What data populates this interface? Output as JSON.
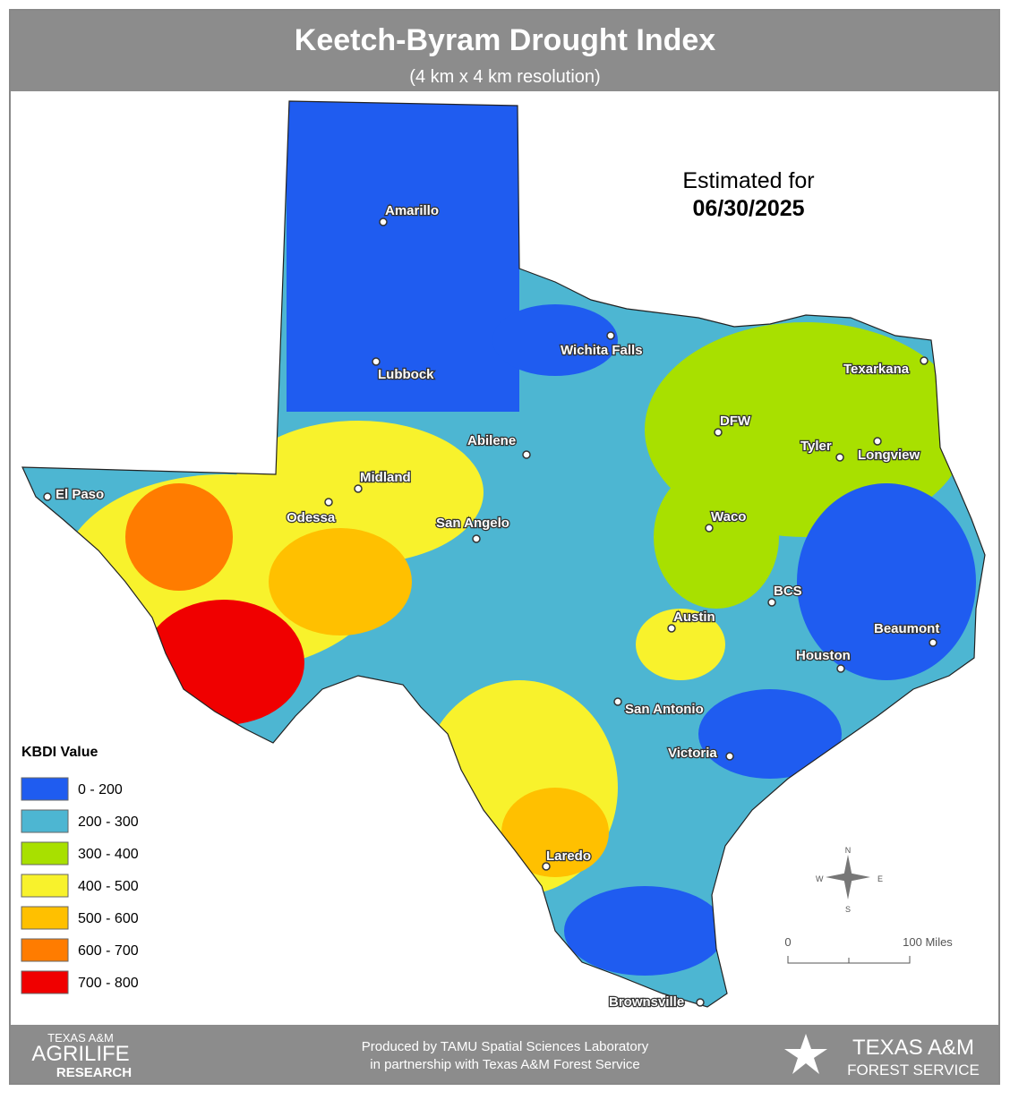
{
  "header": {
    "title": "Keetch-Byram Drought Index",
    "subtitle": "(4 km x 4 km resolution)"
  },
  "estimate": {
    "label": "Estimated for",
    "date": "06/30/2025"
  },
  "cities": [
    "Amarillo",
    "Wichita Falls",
    "Lubbock",
    "Texarkana",
    "DFW",
    "Abilene",
    "Tyler",
    "Longview",
    "Midland",
    "El Paso",
    "Odessa",
    "San Angelo",
    "Waco",
    "BCS",
    "Austin",
    "Beaumont",
    "Houston",
    "San Antonio",
    "Victoria",
    "Laredo",
    "Brownsville"
  ],
  "legend": {
    "title": "KBDI Value",
    "items": [
      {
        "label": "0 - 200",
        "color": "#1f5cf0"
      },
      {
        "label": "200 - 300",
        "color": "#4db6d2"
      },
      {
        "label": "300 - 400",
        "color": "#a8e000"
      },
      {
        "label": "400 - 500",
        "color": "#f8f22c"
      },
      {
        "label": "500 - 600",
        "color": "#ffc000"
      },
      {
        "label": "600 - 700",
        "color": "#ff7c00"
      },
      {
        "label": "700 - 800",
        "color": "#f00000"
      }
    ]
  },
  "compass": {
    "n": "N",
    "s": "S",
    "e": "E",
    "w": "W"
  },
  "scale": {
    "start": "0",
    "end": "100 Miles"
  },
  "footer": {
    "left_top": "TEXAS A&M",
    "left_mid": "AGRILIFE",
    "left_bottom": "RESEARCH",
    "center_1": "Produced by TAMU Spatial Sciences Laboratory",
    "center_2": "in partnership with Texas A&M Forest Service",
    "right_1": "TEXAS A&M",
    "right_2": "FOREST SERVICE"
  }
}
